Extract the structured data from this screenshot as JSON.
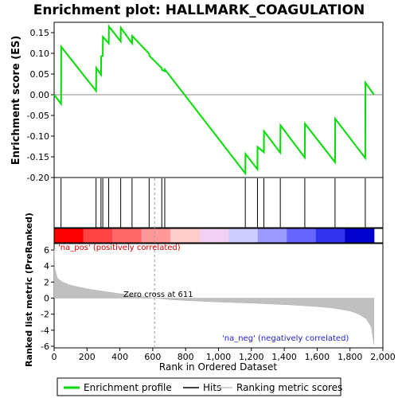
{
  "chart_data": {
    "type": "line",
    "title": "Enrichment plot: HALLMARK_COAGULATION",
    "es_ylabel": "Enrichment score (ES)",
    "rank_ylabel": "Ranked list metric (PreRanked)",
    "xlabel": "Rank in Ordered Dataset",
    "xlim": [
      0,
      2000
    ],
    "es_ylim": [
      -0.2,
      0.175
    ],
    "rank_ylim": [
      -6.2,
      6.8
    ],
    "x_ticks": [
      0,
      200,
      400,
      600,
      800,
      1000,
      1200,
      1400,
      1600,
      1800,
      2000
    ],
    "x_tick_labels": [
      "0",
      "200",
      "400",
      "600",
      "800",
      "1,000",
      "1,200",
      "1,400",
      "1,600",
      "1,800",
      "2,000"
    ],
    "es_ticks": [
      0.15,
      0.1,
      0.05,
      0.0,
      -0.05,
      -0.1,
      -0.15,
      -0.2
    ],
    "es_tick_labels": [
      "0.15",
      "0.10",
      "0.05",
      "0.00",
      "-0.05",
      "-0.10",
      "-0.15",
      "-0.20"
    ],
    "rank_ticks": [
      6,
      4,
      2,
      0,
      -2,
      -4,
      -6
    ],
    "rank_tick_labels": [
      "6",
      "4",
      "2",
      "0",
      "-2",
      "-4",
      "-6"
    ],
    "zero_cross_label": "Zero cross at 611",
    "zero_cross_rank": 611,
    "pos_label": "'na_pos' (positively correlated)",
    "neg_label": "'na_neg' (negatively correlated)",
    "total_rank": 1946,
    "series": [
      {
        "name": "Enrichment profile",
        "color": "#00dd00",
        "x": [
          0,
          42,
          43,
          255,
          256,
          285,
          286,
          296,
          297,
          332,
          333,
          405,
          406,
          474,
          475,
          578,
          579,
          655,
          656,
          673,
          674,
          1163,
          1164,
          1237,
          1238,
          1276,
          1277,
          1376,
          1377,
          1525,
          1526,
          1709,
          1710,
          1893,
          1894,
          1946
        ],
        "values": [
          0.0,
          -0.022,
          0.116,
          0.009,
          0.065,
          0.048,
          0.093,
          0.094,
          0.14,
          0.124,
          0.165,
          0.129,
          0.162,
          0.124,
          0.142,
          0.099,
          0.094,
          0.064,
          0.06,
          0.057,
          0.061,
          -0.19,
          -0.143,
          -0.18,
          -0.126,
          -0.139,
          -0.088,
          -0.14,
          -0.074,
          -0.152,
          -0.07,
          -0.163,
          -0.058,
          -0.153,
          0.029,
          0.0
        ]
      }
    ],
    "hits": [
      42,
      255,
      285,
      296,
      332,
      405,
      474,
      578,
      655,
      673,
      1163,
      1237,
      1276,
      1376,
      1525,
      1709,
      1893
    ],
    "ranking_metric": {
      "x": [
        0,
        5,
        20,
        50,
        100,
        200,
        300,
        400,
        500,
        611,
        700,
        800,
        1000,
        1200,
        1400,
        1600,
        1700,
        1800,
        1850,
        1900,
        1930,
        1946
      ],
      "values": [
        6.1,
        3.6,
        2.5,
        2.0,
        1.6,
        1.15,
        0.85,
        0.55,
        0.28,
        0.0,
        -0.18,
        -0.3,
        -0.48,
        -0.62,
        -0.8,
        -1.05,
        -1.25,
        -1.6,
        -1.95,
        -2.6,
        -3.6,
        -5.8
      ]
    },
    "heatmap_colors": [
      "#ff0000",
      "#ff4444",
      "#ff6666",
      "#ff9999",
      "#ffcccc",
      "#f0d0f0",
      "#ccccff",
      "#9999ff",
      "#6666ff",
      "#3333ee",
      "#0000cc"
    ],
    "legend": [
      {
        "label": "Enrichment profile",
        "color": "#00dd00"
      },
      {
        "label": "Hits",
        "color": "#000000"
      },
      {
        "label": "Ranking metric scores",
        "color": "#c0c0c0"
      }
    ],
    "legend_position": "bottom",
    "grid": false
  }
}
